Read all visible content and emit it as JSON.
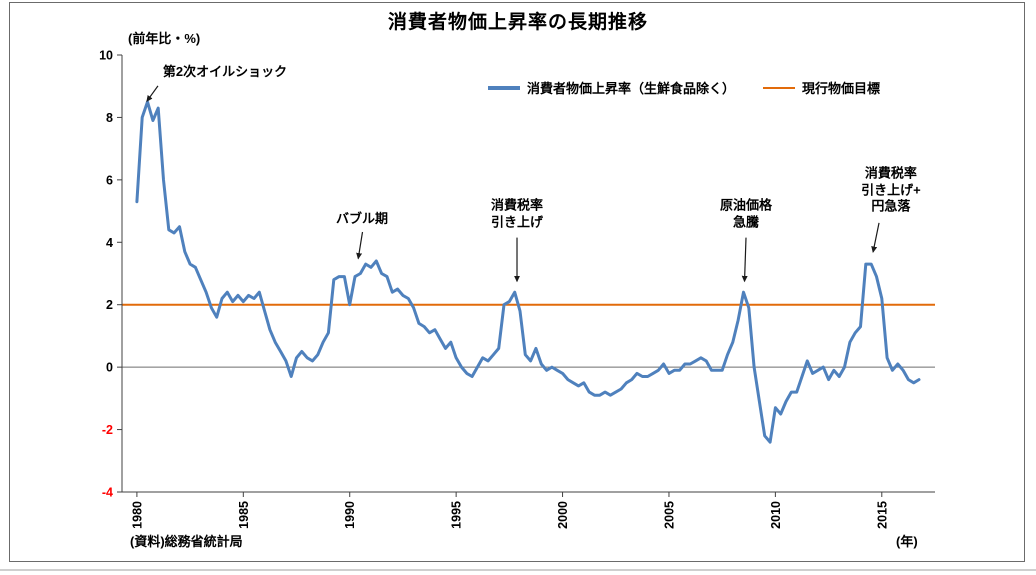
{
  "chart_data": {
    "type": "line",
    "title": "消費者物価上昇率の長期推移",
    "y_axis_label": "(前年比・%)",
    "x_axis_label": "(年)",
    "source": "(資料)総務省統計局",
    "ylim": [
      -4,
      10
    ],
    "xlim": [
      1979.3,
      2017.5
    ],
    "y_ticks": [
      10,
      8,
      6,
      4,
      2,
      0,
      -2,
      -4
    ],
    "x_ticks": [
      1980,
      1985,
      1990,
      1995,
      2000,
      2005,
      2010,
      2015
    ],
    "grid": false,
    "legend_position": "top-inside",
    "neg_tick_color": "#ff0000",
    "axis_color": "#404040",
    "zero_line_color": "#6e6e6e",
    "arrow_color": "#1a1a1a",
    "series": [
      {
        "name": "消費者物価上昇率（生鮮食品除く）",
        "color": "#4f81bd",
        "type": "line",
        "x_start": 1980.0,
        "x_step": 0.25,
        "values": [
          5.3,
          8.0,
          8.5,
          7.9,
          8.3,
          6.0,
          4.4,
          4.3,
          4.5,
          3.7,
          3.3,
          3.2,
          2.8,
          2.4,
          1.9,
          1.6,
          2.2,
          2.4,
          2.1,
          2.3,
          2.1,
          2.3,
          2.2,
          2.4,
          1.8,
          1.2,
          0.8,
          0.5,
          0.2,
          -0.3,
          0.3,
          0.5,
          0.3,
          0.2,
          0.4,
          0.8,
          1.1,
          2.8,
          2.9,
          2.9,
          2.0,
          2.9,
          3.0,
          3.3,
          3.2,
          3.4,
          3.0,
          2.9,
          2.4,
          2.5,
          2.3,
          2.2,
          1.9,
          1.4,
          1.3,
          1.1,
          1.2,
          0.9,
          0.6,
          0.8,
          0.3,
          0.0,
          -0.2,
          -0.3,
          0.0,
          0.3,
          0.2,
          0.4,
          0.6,
          2.0,
          2.1,
          2.4,
          1.8,
          0.4,
          0.2,
          0.6,
          0.1,
          -0.1,
          0.0,
          -0.1,
          -0.2,
          -0.4,
          -0.5,
          -0.6,
          -0.5,
          -0.8,
          -0.9,
          -0.9,
          -0.8,
          -0.9,
          -0.8,
          -0.7,
          -0.5,
          -0.4,
          -0.2,
          -0.3,
          -0.3,
          -0.2,
          -0.1,
          0.1,
          -0.2,
          -0.1,
          -0.1,
          0.1,
          0.1,
          0.2,
          0.3,
          0.2,
          -0.1,
          -0.1,
          -0.1,
          0.4,
          0.8,
          1.5,
          2.4,
          1.9,
          0.0,
          -1.1,
          -2.2,
          -2.4,
          -1.3,
          -1.5,
          -1.1,
          -0.8,
          -0.8,
          -0.3,
          0.2,
          -0.2,
          -0.1,
          0.0,
          -0.4,
          -0.1,
          -0.3,
          0.0,
          0.8,
          1.1,
          1.3,
          3.3,
          3.3,
          2.9,
          2.2,
          0.3,
          -0.1,
          0.1,
          -0.1,
          -0.4,
          -0.5,
          -0.4
        ]
      },
      {
        "name": "現行物価目標",
        "color": "#e26b0a",
        "type": "hline",
        "value": 2
      }
    ],
    "annotations": [
      {
        "lines": [
          "第2次オイルショック"
        ],
        "label": {
          "x": 1984.14,
          "y": 9.46
        },
        "arrow": {
          "from": {
            "x": 1980.99,
            "y": 9.01
          },
          "to": {
            "x": 1980.47,
            "y": 8.52
          }
        }
      },
      {
        "lines": [
          "バブル期"
        ],
        "label": {
          "x": 1990.58,
          "y": 4.75
        },
        "arrow": {
          "from": {
            "x": 1990.6,
            "y": 4.33
          },
          "to": {
            "x": 1990.4,
            "y": 3.48
          }
        }
      },
      {
        "lines": [
          "消費税率",
          "引き上げ"
        ],
        "label": {
          "x": 1997.86,
          "y": 4.9
        },
        "arrow": {
          "from": {
            "x": 1997.86,
            "y": 4.15
          },
          "to": {
            "x": 1997.86,
            "y": 2.75
          }
        }
      },
      {
        "lines": [
          "原油価格",
          "急騰"
        ],
        "label": {
          "x": 2008.62,
          "y": 4.9
        },
        "arrow": {
          "from": {
            "x": 2008.62,
            "y": 4.15
          },
          "to": {
            "x": 2008.55,
            "y": 2.75
          }
        }
      },
      {
        "lines": [
          "消費税率",
          "引き上げ+",
          "円急落"
        ],
        "label": {
          "x": 2015.43,
          "y": 5.67
        },
        "arrow": {
          "from": {
            "x": 2014.87,
            "y": 4.62
          },
          "to": {
            "x": 2014.59,
            "y": 3.69
          }
        }
      }
    ]
  }
}
